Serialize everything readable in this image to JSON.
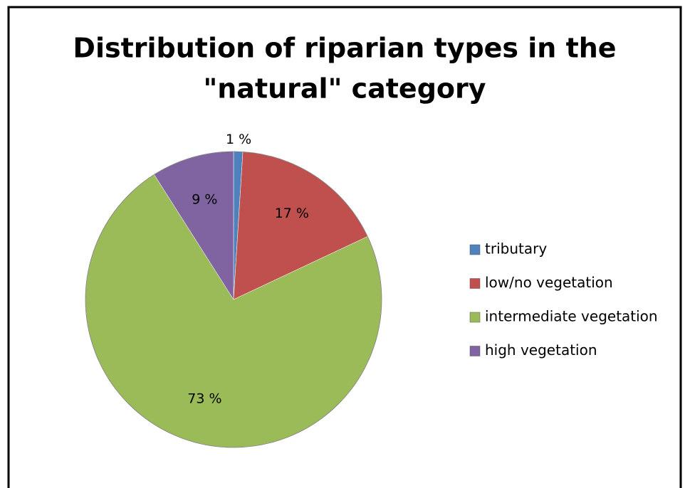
{
  "chart_data": {
    "type": "pie",
    "title": [
      "Distribution of riparian types in the",
      "\"natural\" category"
    ],
    "categories": [
      "tributary",
      "low/no vegetation",
      "intermediate vegetation",
      "high vegetation"
    ],
    "values": [
      1,
      17,
      73,
      9
    ],
    "value_labels": [
      "1 %",
      "17 %",
      "73 %",
      "9 %"
    ],
    "colors": [
      "#4f81bd",
      "#c0504d",
      "#9bbb59",
      "#8064a2"
    ],
    "legend": "right"
  }
}
